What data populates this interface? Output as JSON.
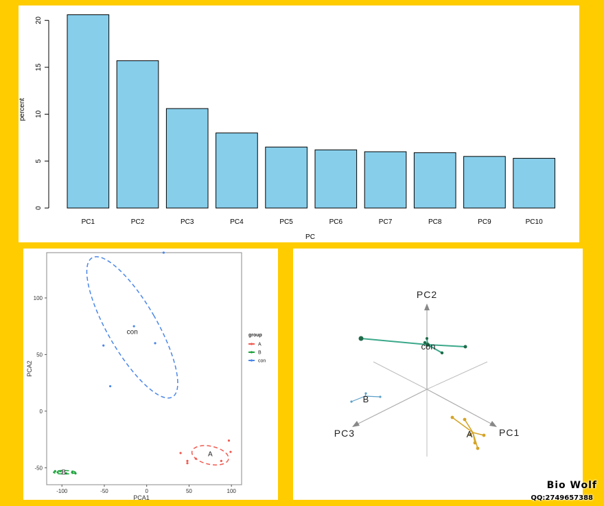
{
  "colors": {
    "background": "#ffcc00",
    "bar_fill": "#87ceeb",
    "group_A": "#f05a50",
    "group_B": "#1aa23a",
    "group_con": "#4a86e8",
    "pc_line_green": "#3aa88a",
    "pc_line_blue": "#5a9fc8",
    "pc_line_gold": "#d4a428",
    "axis_gray": "#bdbdbd"
  },
  "chart_data": [
    {
      "type": "bar",
      "categories": [
        "PC1",
        "PC2",
        "PC3",
        "PC4",
        "PC5",
        "PC6",
        "PC7",
        "PC8",
        "PC9",
        "PC10"
      ],
      "values": [
        20.6,
        15.7,
        10.6,
        8.0,
        6.5,
        6.2,
        6.0,
        5.9,
        5.5,
        5.3
      ],
      "xlabel": "PC",
      "ylabel": "percent",
      "ylim": [
        0,
        21
      ],
      "yticks": [
        0,
        5,
        10,
        15,
        20
      ]
    },
    {
      "type": "scatter",
      "xlabel": "PCA1",
      "ylabel": "PCA2",
      "xlim": [
        -118,
        112
      ],
      "ylim": [
        -65,
        140
      ],
      "xticks": [
        -100,
        -50,
        0,
        50,
        100
      ],
      "yticks": [
        -50,
        0,
        50,
        100
      ],
      "legend_title": "group",
      "legend_position": "right",
      "groups": [
        {
          "name": "A",
          "color": "#f05a50",
          "label": "A",
          "center": [
            75,
            -38
          ],
          "points": [
            [
              40,
              -37
            ],
            [
              48,
              -44
            ],
            [
              48,
              -46
            ],
            [
              58,
              -42
            ],
            [
              88,
              -44
            ],
            [
              97,
              -26
            ],
            [
              99,
              -36
            ]
          ],
          "ellipse": {
            "cx": 75,
            "cy": -39,
            "rx": 22,
            "ry": 8,
            "angle": 12
          }
        },
        {
          "name": "B",
          "color": "#1aa23a",
          "label": "B",
          "center": [
            -98,
            -54
          ],
          "points": [
            [
              -108,
              -53
            ],
            [
              -105,
              -54
            ],
            [
              -102,
              -53
            ],
            [
              -95,
              -55
            ],
            [
              -88,
              -54
            ],
            [
              -84,
              -55
            ]
          ],
          "ellipse": {
            "cx": -97,
            "cy": -54,
            "rx": 13,
            "ry": 1.5,
            "angle": 0
          }
        },
        {
          "name": "con",
          "color": "#4a86e8",
          "label": "con",
          "center": [
            -17,
            70
          ],
          "points": [
            [
              -51,
              58
            ],
            [
              -43,
              22
            ],
            [
              -15,
              75
            ],
            [
              10,
              60
            ],
            [
              20,
              140
            ]
          ],
          "ellipse": {
            "cx": -17,
            "cy": 74,
            "rx": 29,
            "ry": 71,
            "angle": -30
          }
        }
      ]
    },
    {
      "type": "scatter",
      "axes": [
        "PC1",
        "PC2",
        "PC3"
      ],
      "group_labels": [
        "con",
        "B",
        "A"
      ]
    }
  ],
  "watermark": {
    "brand": "Bio Wolf",
    "qq": "QQ:2749657388"
  }
}
